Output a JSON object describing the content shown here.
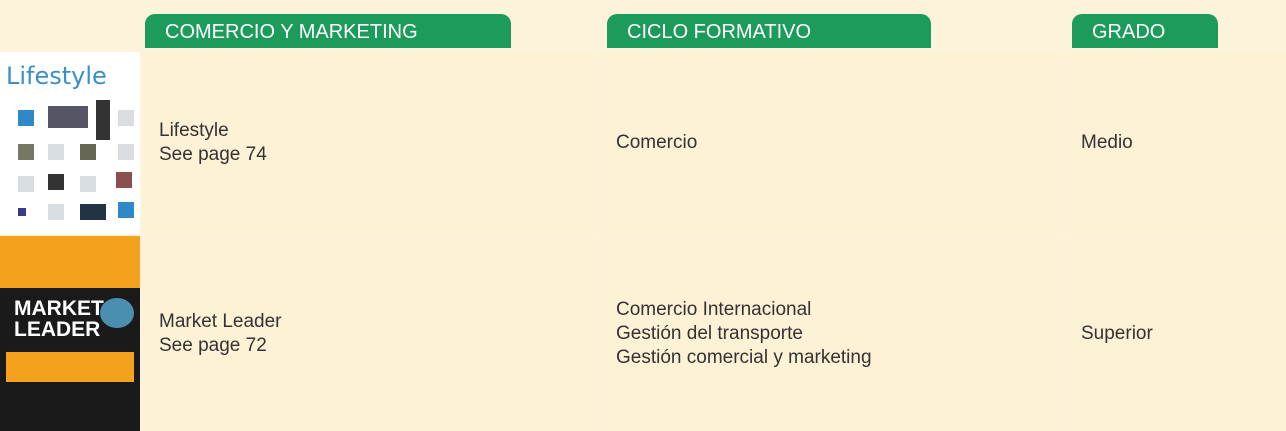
{
  "table": {
    "headers": [
      "COMERCIO Y MARKETING",
      "CICLO FORMATIVO",
      "GRADO"
    ],
    "rows": [
      {
        "cover": [
          "Lifestyle"
        ],
        "title": "Lifestyle",
        "page": "See page 74",
        "ciclos": [
          "Comercio"
        ],
        "grado": "Medio"
      },
      {
        "cover": [
          "MARKET",
          "LEADER"
        ],
        "title": "Market Leader",
        "page": "See page 72",
        "ciclos": [
          "Comercio Internacional",
          "Gestión del transporte",
          "Gestión comercial y marketing"
        ],
        "grado": "Superior"
      }
    ]
  }
}
